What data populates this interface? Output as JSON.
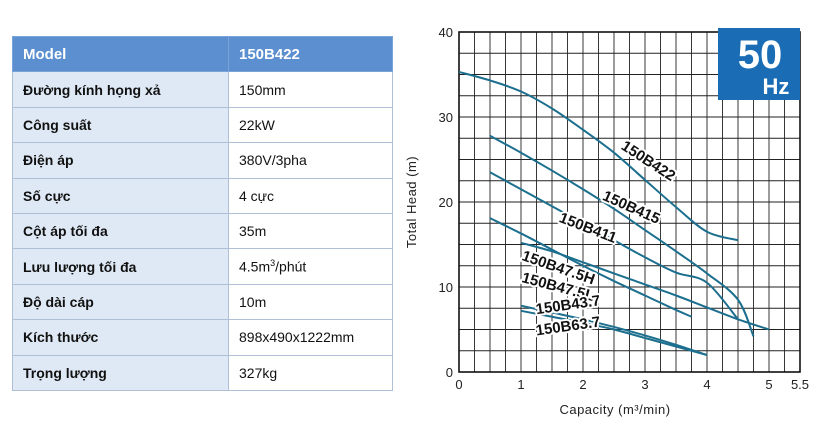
{
  "spec_table": {
    "header": {
      "key": "Model",
      "value": "150B422"
    },
    "rows": [
      {
        "key": "Đường kính họng xả",
        "value": "150mm"
      },
      {
        "key": "Công suất",
        "value": "22kW"
      },
      {
        "key": "Điện áp",
        "value": "380V/3pha"
      },
      {
        "key": "Số cực",
        "value": "4 cực"
      },
      {
        "key": "Cột áp tối đa",
        "value": "35m"
      },
      {
        "key": "Lưu lượng tối đa",
        "value": "4.5m3/phút",
        "value_main": "4.5m",
        "value_sup": "3",
        "value_tail": "/phút"
      },
      {
        "key": "Độ dài cáp",
        "value": "10m"
      },
      {
        "key": "Kích thước",
        "value": "898x490x1222mm"
      },
      {
        "key": "Trọng lượng",
        "value": "327kg"
      }
    ]
  },
  "chart_data": {
    "type": "line",
    "xlabel": "Capacity (m³/min)",
    "ylabel": "Total Head (m)",
    "xlim": [
      0,
      5.5
    ],
    "ylim": [
      0,
      40
    ],
    "x_ticks": [
      "0",
      "1",
      "2",
      "3",
      "4",
      "5",
      "5.5"
    ],
    "y_ticks": [
      "0",
      "10",
      "20",
      "30",
      "40"
    ],
    "grid": true,
    "line_color": "#1c6f8e",
    "badge": {
      "value": "50",
      "unit": "Hz",
      "color": "#1a6db5"
    },
    "series": [
      {
        "name": "150B422",
        "x": [
          0,
          0.5,
          1,
          1.5,
          2,
          2.5,
          3,
          3.5,
          4,
          4.5
        ],
        "y": [
          35.3,
          34.3,
          33,
          31,
          28.5,
          25.8,
          22.6,
          19.4,
          16.5,
          15.5
        ]
      },
      {
        "name": "150B415",
        "x": [
          0.5,
          1,
          1.5,
          2,
          2.5,
          3,
          3.5,
          4,
          4.5,
          4.75
        ],
        "y": [
          27.8,
          25.8,
          23.7,
          21.5,
          19.2,
          16.7,
          14.2,
          11.6,
          8.5,
          4.2
        ]
      },
      {
        "name": "150B411",
        "x": [
          0.5,
          1,
          1.5,
          2,
          2.5,
          3,
          3.5,
          4,
          4.5
        ],
        "y": [
          23.5,
          21.5,
          19.5,
          17.5,
          15.5,
          13.5,
          11.7,
          10.5,
          6.2
        ]
      },
      {
        "name": "150B47.5H",
        "x": [
          0.5,
          1,
          1.5,
          2,
          2.5,
          3,
          3.5,
          3.75
        ],
        "y": [
          18.1,
          16.3,
          14.4,
          12.5,
          10.7,
          9.0,
          7.3,
          6.5
        ]
      },
      {
        "name": "150B47.5L",
        "x": [
          1,
          1.5,
          2,
          2.5,
          3,
          3.5,
          4,
          4.5,
          5
        ],
        "y": [
          15.2,
          14.2,
          12.9,
          11.6,
          10.3,
          9.0,
          7.6,
          6.2,
          5.0
        ]
      },
      {
        "name": "150B43.7",
        "x": [
          1,
          1.5,
          2,
          2.5,
          3,
          3.5,
          4
        ],
        "y": [
          7.8,
          7.0,
          6.2,
          5.3,
          4.3,
          3.2,
          2.0
        ]
      },
      {
        "name": "150B63.7",
        "x": [
          1,
          1.5,
          2,
          2.5,
          3,
          3.5,
          4
        ],
        "y": [
          7.2,
          6.5,
          5.8,
          5.0,
          4.0,
          3.0,
          2.0
        ]
      }
    ],
    "labels": [
      {
        "text": "150B422",
        "x": 2.6,
        "y": 26.3,
        "angle": 33
      },
      {
        "text": "150B415",
        "x": 2.3,
        "y": 20.3,
        "angle": 24
      },
      {
        "text": "150B411",
        "x": 1.6,
        "y": 17.7,
        "angle": 21
      },
      {
        "text": "150B47.5H",
        "x": 1.0,
        "y": 13.2,
        "angle": 19
      },
      {
        "text": "150B47.5L",
        "x": 1.0,
        "y": 10.6,
        "angle": 15
      },
      {
        "text": "150B43.7",
        "x": 1.25,
        "y": 6.8,
        "angle": -8
      },
      {
        "text": "150B63.7",
        "x": 1.25,
        "y": 4.3,
        "angle": -8
      }
    ]
  }
}
